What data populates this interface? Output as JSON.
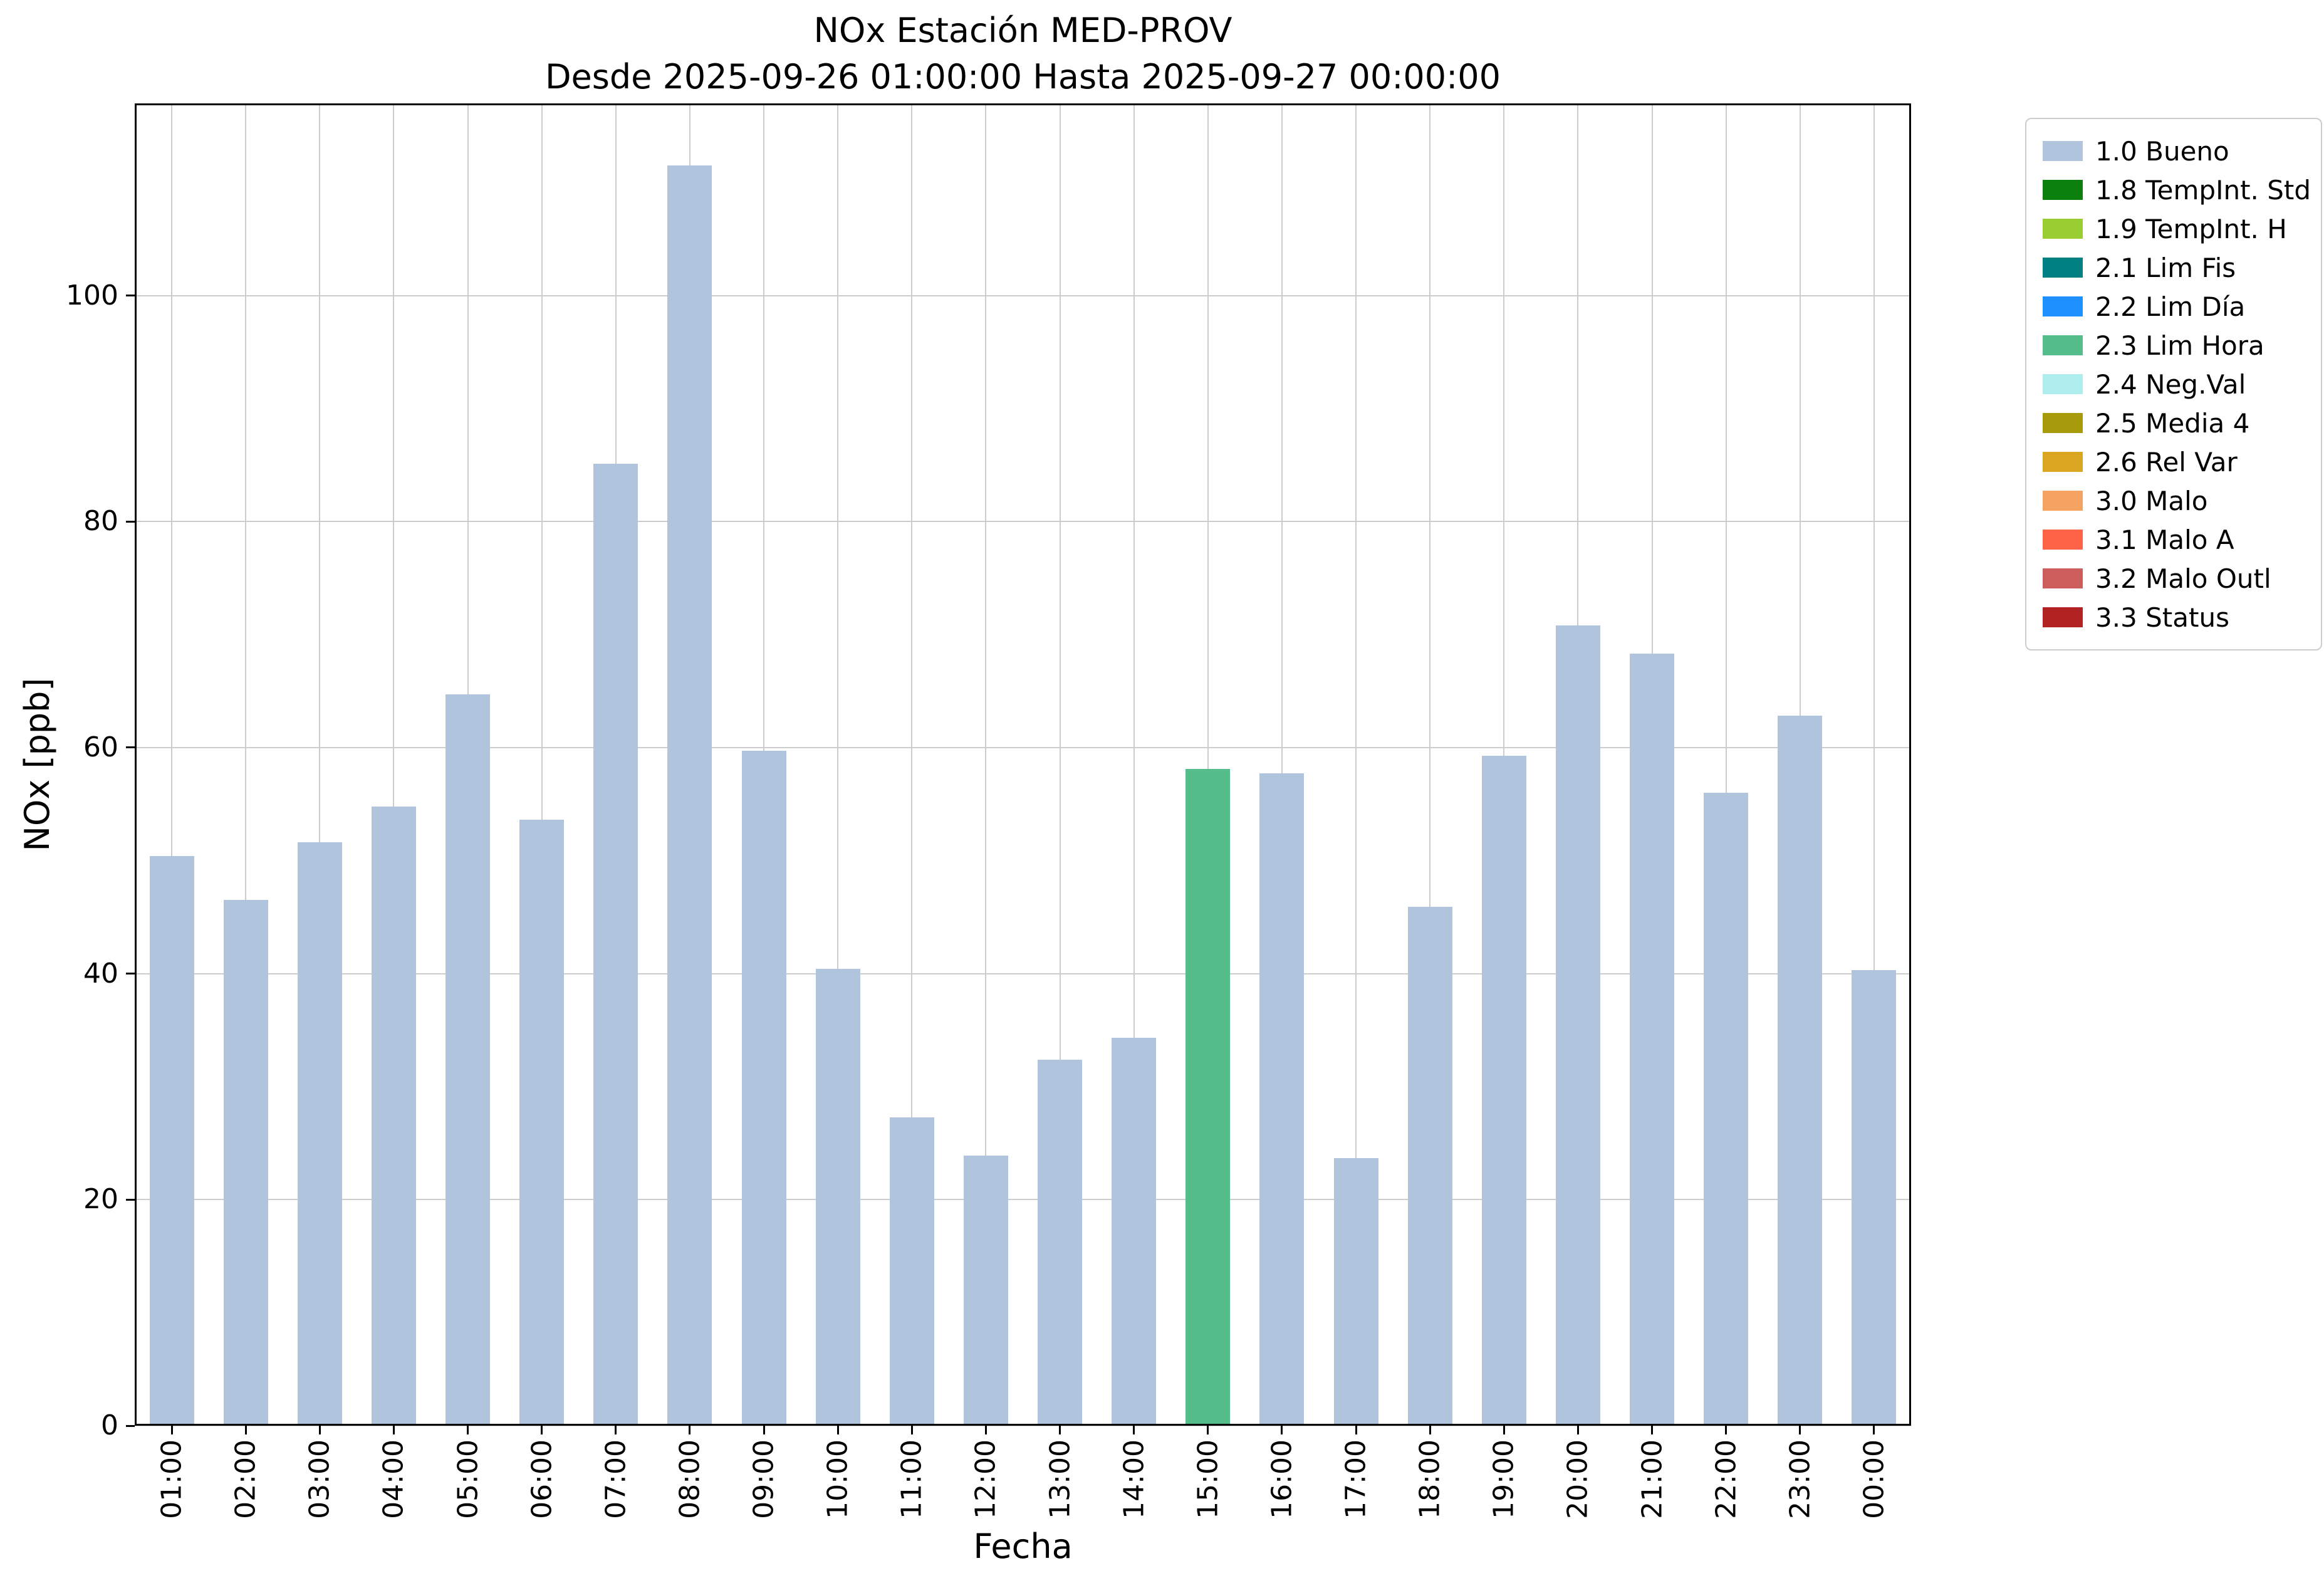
{
  "figure": {
    "title_line1": "NOx Estación MED-PROV",
    "title_line2": "Desde 2025-09-26 01:00:00 Hasta 2025-09-27 00:00:00"
  },
  "chart_data": {
    "type": "bar",
    "title": "NOx Estación MED-PROV",
    "subtitle": "Desde 2025-09-26 01:00:00 Hasta 2025-09-27 00:00:00",
    "xlabel": "Fecha",
    "ylabel": "NOx [ppb]",
    "ylim": [
      0,
      117
    ],
    "yticks": [
      0,
      20,
      40,
      60,
      80,
      100
    ],
    "grid": true,
    "legend_position": "outside-right",
    "categories": [
      "01:00",
      "02:00",
      "03:00",
      "04:00",
      "05:00",
      "06:00",
      "07:00",
      "08:00",
      "09:00",
      "10:00",
      "11:00",
      "12:00",
      "13:00",
      "14:00",
      "15:00",
      "16:00",
      "17:00",
      "18:00",
      "19:00",
      "20:00",
      "21:00",
      "22:00",
      "23:00",
      "00:00"
    ],
    "values": [
      50.4,
      46.5,
      51.6,
      54.8,
      64.7,
      53.6,
      85.1,
      111.5,
      59.7,
      40.4,
      27.3,
      23.9,
      32.4,
      34.3,
      58.1,
      57.7,
      23.7,
      45.9,
      59.3,
      70.8,
      68.3,
      56.0,
      62.8,
      40.3
    ],
    "flags": [
      "1.0 Bueno",
      "1.0 Bueno",
      "1.0 Bueno",
      "1.0 Bueno",
      "1.0 Bueno",
      "1.0 Bueno",
      "1.0 Bueno",
      "1.0 Bueno",
      "1.0 Bueno",
      "1.0 Bueno",
      "1.0 Bueno",
      "1.0 Bueno",
      "1.0 Bueno",
      "1.0 Bueno",
      "2.3 Lim Hora",
      "1.0 Bueno",
      "1.0 Bueno",
      "1.0 Bueno",
      "1.0 Bueno",
      "1.0 Bueno",
      "1.0 Bueno",
      "1.0 Bueno",
      "1.0 Bueno",
      "1.0 Bueno"
    ],
    "legend": [
      {
        "label": "1.0 Bueno",
        "color": "#b0c4de"
      },
      {
        "label": "1.8 TempInt. Std",
        "color": "#0c800c"
      },
      {
        "label": "1.9 TempInt. H",
        "color": "#9acd32"
      },
      {
        "label": "2.1 Lim Fis",
        "color": "#008080"
      },
      {
        "label": "2.2 Lim Día",
        "color": "#1e90ff"
      },
      {
        "label": "2.3 Lim Hora",
        "color": "#55bd8b"
      },
      {
        "label": "2.4 Neg.Val",
        "color": "#afeeee"
      },
      {
        "label": "2.5 Media 4",
        "color": "#a89b0b"
      },
      {
        "label": "2.6 Rel Var",
        "color": "#daa520"
      },
      {
        "label": "3.0 Malo",
        "color": "#f4a460"
      },
      {
        "label": "3.1 Malo A",
        "color": "#ff6347"
      },
      {
        "label": "3.2 Malo Outl",
        "color": "#cd5c5c"
      },
      {
        "label": "3.3 Status",
        "color": "#b22222"
      }
    ]
  }
}
